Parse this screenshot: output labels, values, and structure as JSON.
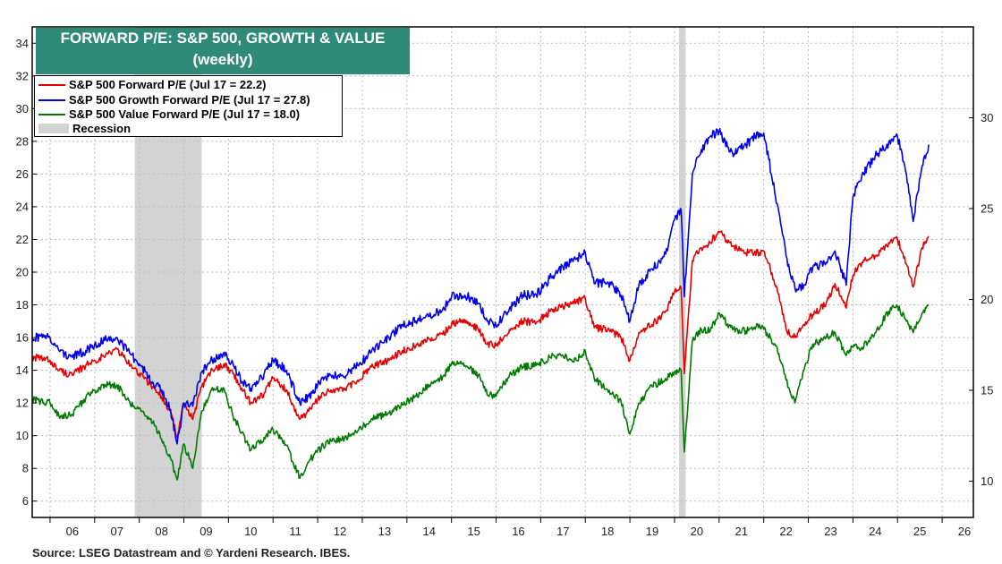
{
  "title": {
    "line1": "FORWARD P/E: S&P 500, GROWTH & VALUE",
    "line2": "(weekly)"
  },
  "legend": [
    {
      "label": "S&P 500 Forward P/E (Jul 17 = 22.2)",
      "color": "#e60000",
      "kind": "line"
    },
    {
      "label": "S&P 500 Growth Forward P/E (Jul 17 = 27.8)",
      "color": "#0000ee",
      "kind": "line"
    },
    {
      "label": "S&P 500 Value Forward P/E (Jul 17 = 18.0)",
      "color": "#007a00",
      "kind": "line"
    },
    {
      "label": "Recession",
      "color": "#d3d3d3",
      "kind": "box"
    }
  ],
  "source": "Source: LSEG Datastream and © Yardeni Research. IBES.",
  "chart_data": {
    "type": "line",
    "title": "FORWARD P/E: S&P 500, GROWTH & VALUE",
    "subtitle": "(weekly)",
    "x_tick_labels": [
      "06",
      "07",
      "08",
      "09",
      "10",
      "11",
      "12",
      "13",
      "14",
      "15",
      "16",
      "17",
      "18",
      "19",
      "20",
      "21",
      "22",
      "23",
      "24",
      "25",
      "26"
    ],
    "x_range": [
      2005.6,
      2026.7
    ],
    "left_axis": {
      "range": [
        5,
        35
      ],
      "ticks": [
        6,
        8,
        10,
        12,
        14,
        16,
        18,
        20,
        22,
        24,
        26,
        28,
        30,
        32,
        34
      ]
    },
    "right_axis": {
      "range": [
        8,
        35
      ],
      "ticks": [
        10,
        15,
        20,
        25,
        30
      ]
    },
    "grid": true,
    "legend_position": "top-left",
    "recessions": [
      [
        2007.9,
        2009.4
      ],
      [
        2020.1,
        2020.25
      ]
    ],
    "series": [
      {
        "name": "S&P 500 Forward P/E (Jul 17 = 22.2)",
        "color": "#e60000",
        "axis": "left",
        "points": [
          [
            2005.6,
            14.8
          ],
          [
            2006.0,
            14.6
          ],
          [
            2006.2,
            14.0
          ],
          [
            2006.5,
            13.7
          ],
          [
            2006.8,
            14.3
          ],
          [
            2007.0,
            14.6
          ],
          [
            2007.3,
            15.0
          ],
          [
            2007.5,
            15.3
          ],
          [
            2007.8,
            14.3
          ],
          [
            2008.0,
            13.8
          ],
          [
            2008.3,
            13.0
          ],
          [
            2008.5,
            12.4
          ],
          [
            2008.7,
            11.5
          ],
          [
            2008.85,
            9.9
          ],
          [
            2009.0,
            12.0
          ],
          [
            2009.2,
            11.0
          ],
          [
            2009.4,
            13.0
          ],
          [
            2009.6,
            13.9
          ],
          [
            2009.9,
            14.4
          ],
          [
            2010.1,
            13.8
          ],
          [
            2010.3,
            12.9
          ],
          [
            2010.5,
            12.0
          ],
          [
            2010.8,
            12.6
          ],
          [
            2011.0,
            13.5
          ],
          [
            2011.3,
            12.8
          ],
          [
            2011.6,
            11.0
          ],
          [
            2011.8,
            11.5
          ],
          [
            2012.0,
            12.2
          ],
          [
            2012.3,
            12.8
          ],
          [
            2012.6,
            12.8
          ],
          [
            2012.9,
            13.4
          ],
          [
            2013.2,
            14.2
          ],
          [
            2013.6,
            14.6
          ],
          [
            2013.9,
            15.2
          ],
          [
            2014.2,
            15.5
          ],
          [
            2014.5,
            15.9
          ],
          [
            2014.8,
            16.2
          ],
          [
            2015.0,
            16.8
          ],
          [
            2015.3,
            17.1
          ],
          [
            2015.6,
            16.5
          ],
          [
            2015.8,
            15.6
          ],
          [
            2016.0,
            15.5
          ],
          [
            2016.3,
            16.5
          ],
          [
            2016.6,
            17.0
          ],
          [
            2016.9,
            16.9
          ],
          [
            2017.2,
            17.6
          ],
          [
            2017.5,
            17.9
          ],
          [
            2017.8,
            18.2
          ],
          [
            2018.0,
            18.4
          ],
          [
            2018.2,
            16.6
          ],
          [
            2018.5,
            16.5
          ],
          [
            2018.8,
            16.0
          ],
          [
            2019.0,
            14.6
          ],
          [
            2019.2,
            16.3
          ],
          [
            2019.5,
            16.8
          ],
          [
            2019.8,
            17.6
          ],
          [
            2020.0,
            18.8
          ],
          [
            2020.15,
            19.0
          ],
          [
            2020.22,
            13.8
          ],
          [
            2020.4,
            20.7
          ],
          [
            2020.6,
            21.5
          ],
          [
            2020.8,
            21.8
          ],
          [
            2021.0,
            22.5
          ],
          [
            2021.3,
            21.6
          ],
          [
            2021.6,
            21.2
          ],
          [
            2021.9,
            21.2
          ],
          [
            2022.0,
            21.3
          ],
          [
            2022.3,
            19.0
          ],
          [
            2022.5,
            16.5
          ],
          [
            2022.7,
            16.0
          ],
          [
            2022.9,
            16.8
          ],
          [
            2023.1,
            17.4
          ],
          [
            2023.4,
            18.1
          ],
          [
            2023.6,
            19.3
          ],
          [
            2023.85,
            17.8
          ],
          [
            2024.0,
            19.8
          ],
          [
            2024.2,
            20.6
          ],
          [
            2024.5,
            21.0
          ],
          [
            2024.8,
            21.8
          ],
          [
            2025.0,
            22.0
          ],
          [
            2025.2,
            20.5
          ],
          [
            2025.35,
            19.1
          ],
          [
            2025.55,
            21.5
          ],
          [
            2025.7,
            22.2
          ]
        ]
      },
      {
        "name": "S&P 500 Growth Forward P/E (Jul 17 = 27.8)",
        "color": "#0000ee",
        "axis": "left",
        "points": [
          [
            2005.6,
            16.0
          ],
          [
            2006.0,
            16.0
          ],
          [
            2006.2,
            15.2
          ],
          [
            2006.5,
            14.8
          ],
          [
            2006.8,
            15.2
          ],
          [
            2007.0,
            15.6
          ],
          [
            2007.3,
            15.9
          ],
          [
            2007.5,
            16.0
          ],
          [
            2007.8,
            15.0
          ],
          [
            2008.0,
            14.4
          ],
          [
            2008.3,
            13.3
          ],
          [
            2008.5,
            12.8
          ],
          [
            2008.7,
            11.6
          ],
          [
            2008.85,
            9.5
          ],
          [
            2009.0,
            12.0
          ],
          [
            2009.2,
            11.8
          ],
          [
            2009.4,
            13.9
          ],
          [
            2009.6,
            14.6
          ],
          [
            2009.9,
            15.1
          ],
          [
            2010.1,
            14.4
          ],
          [
            2010.3,
            13.3
          ],
          [
            2010.5,
            12.9
          ],
          [
            2010.8,
            13.8
          ],
          [
            2011.0,
            14.6
          ],
          [
            2011.3,
            14.0
          ],
          [
            2011.6,
            12.0
          ],
          [
            2011.8,
            12.4
          ],
          [
            2012.0,
            13.1
          ],
          [
            2012.3,
            13.7
          ],
          [
            2012.6,
            13.6
          ],
          [
            2012.9,
            14.3
          ],
          [
            2013.2,
            15.1
          ],
          [
            2013.6,
            16.0
          ],
          [
            2013.9,
            16.8
          ],
          [
            2014.2,
            17.0
          ],
          [
            2014.5,
            17.3
          ],
          [
            2014.8,
            17.7
          ],
          [
            2015.0,
            18.5
          ],
          [
            2015.3,
            18.6
          ],
          [
            2015.6,
            18.1
          ],
          [
            2015.8,
            17.0
          ],
          [
            2016.0,
            16.7
          ],
          [
            2016.3,
            17.8
          ],
          [
            2016.6,
            18.6
          ],
          [
            2016.9,
            18.6
          ],
          [
            2017.2,
            19.6
          ],
          [
            2017.5,
            20.3
          ],
          [
            2017.8,
            20.8
          ],
          [
            2018.0,
            21.2
          ],
          [
            2018.2,
            19.3
          ],
          [
            2018.5,
            19.4
          ],
          [
            2018.8,
            18.6
          ],
          [
            2019.0,
            17.0
          ],
          [
            2019.2,
            19.2
          ],
          [
            2019.5,
            20.2
          ],
          [
            2019.8,
            21.1
          ],
          [
            2020.0,
            23.2
          ],
          [
            2020.15,
            23.8
          ],
          [
            2020.22,
            18.5
          ],
          [
            2020.4,
            26.0
          ],
          [
            2020.6,
            27.5
          ],
          [
            2020.8,
            28.3
          ],
          [
            2021.0,
            28.6
          ],
          [
            2021.3,
            27.3
          ],
          [
            2021.6,
            27.8
          ],
          [
            2021.9,
            28.5
          ],
          [
            2022.0,
            28.5
          ],
          [
            2022.3,
            24.2
          ],
          [
            2022.5,
            21.0
          ],
          [
            2022.7,
            19.0
          ],
          [
            2022.9,
            19.2
          ],
          [
            2023.1,
            20.3
          ],
          [
            2023.4,
            20.6
          ],
          [
            2023.6,
            21.3
          ],
          [
            2023.85,
            19.2
          ],
          [
            2024.0,
            24.6
          ],
          [
            2024.2,
            25.9
          ],
          [
            2024.5,
            27.1
          ],
          [
            2024.8,
            27.9
          ],
          [
            2025.0,
            28.3
          ],
          [
            2025.2,
            26.0
          ],
          [
            2025.35,
            23.1
          ],
          [
            2025.55,
            26.5
          ],
          [
            2025.7,
            27.8
          ]
        ]
      },
      {
        "name": "S&P 500 Value Forward P/E (Jul 17 = 18.0)",
        "color": "#007a00",
        "axis": "left",
        "points": [
          [
            2005.6,
            12.2
          ],
          [
            2006.0,
            12.0
          ],
          [
            2006.2,
            11.2
          ],
          [
            2006.5,
            11.3
          ],
          [
            2006.8,
            12.3
          ],
          [
            2007.0,
            12.8
          ],
          [
            2007.3,
            13.1
          ],
          [
            2007.5,
            13.1
          ],
          [
            2007.8,
            11.9
          ],
          [
            2008.0,
            11.7
          ],
          [
            2008.3,
            10.8
          ],
          [
            2008.5,
            9.8
          ],
          [
            2008.7,
            8.6
          ],
          [
            2008.85,
            7.3
          ],
          [
            2009.0,
            9.5
          ],
          [
            2009.2,
            8.0
          ],
          [
            2009.4,
            11.5
          ],
          [
            2009.6,
            12.7
          ],
          [
            2009.9,
            12.9
          ],
          [
            2010.1,
            11.2
          ],
          [
            2010.3,
            10.2
          ],
          [
            2010.5,
            9.1
          ],
          [
            2010.8,
            9.9
          ],
          [
            2011.0,
            10.4
          ],
          [
            2011.3,
            9.4
          ],
          [
            2011.6,
            7.4
          ],
          [
            2011.8,
            8.4
          ],
          [
            2012.0,
            9.1
          ],
          [
            2012.3,
            9.7
          ],
          [
            2012.6,
            9.8
          ],
          [
            2012.9,
            10.3
          ],
          [
            2013.2,
            11.0
          ],
          [
            2013.6,
            11.4
          ],
          [
            2013.9,
            11.9
          ],
          [
            2014.2,
            12.4
          ],
          [
            2014.5,
            13.1
          ],
          [
            2014.8,
            13.6
          ],
          [
            2015.0,
            14.4
          ],
          [
            2015.3,
            14.3
          ],
          [
            2015.6,
            13.7
          ],
          [
            2015.8,
            12.5
          ],
          [
            2016.0,
            12.4
          ],
          [
            2016.3,
            13.7
          ],
          [
            2016.6,
            14.2
          ],
          [
            2016.9,
            14.3
          ],
          [
            2017.2,
            14.8
          ],
          [
            2017.5,
            14.9
          ],
          [
            2017.8,
            14.6
          ],
          [
            2018.0,
            15.2
          ],
          [
            2018.2,
            13.5
          ],
          [
            2018.5,
            12.8
          ],
          [
            2018.8,
            12.1
          ],
          [
            2019.0,
            10.1
          ],
          [
            2019.2,
            12.0
          ],
          [
            2019.5,
            13.0
          ],
          [
            2019.8,
            13.5
          ],
          [
            2020.0,
            13.9
          ],
          [
            2020.15,
            14.0
          ],
          [
            2020.22,
            9.0
          ],
          [
            2020.4,
            15.8
          ],
          [
            2020.6,
            16.5
          ],
          [
            2020.8,
            16.4
          ],
          [
            2021.0,
            17.5
          ],
          [
            2021.3,
            16.5
          ],
          [
            2021.6,
            16.4
          ],
          [
            2021.9,
            16.8
          ],
          [
            2022.0,
            16.5
          ],
          [
            2022.3,
            15.4
          ],
          [
            2022.5,
            13.4
          ],
          [
            2022.7,
            12.0
          ],
          [
            2022.9,
            14.0
          ],
          [
            2023.1,
            15.6
          ],
          [
            2023.4,
            16.0
          ],
          [
            2023.6,
            16.3
          ],
          [
            2023.85,
            14.9
          ],
          [
            2024.0,
            15.4
          ],
          [
            2024.2,
            15.4
          ],
          [
            2024.5,
            16.3
          ],
          [
            2024.8,
            17.6
          ],
          [
            2025.0,
            17.9
          ],
          [
            2025.2,
            17.0
          ],
          [
            2025.35,
            16.3
          ],
          [
            2025.55,
            17.5
          ],
          [
            2025.7,
            18.0
          ]
        ]
      }
    ]
  }
}
